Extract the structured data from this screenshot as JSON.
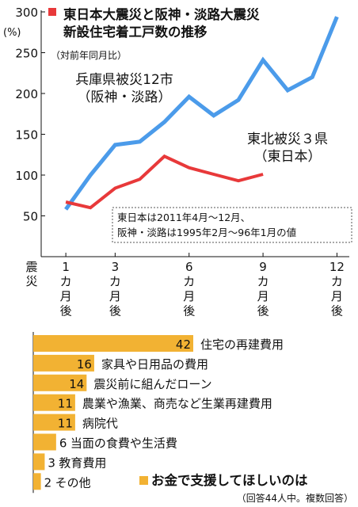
{
  "chart_data": [
    {
      "type": "line",
      "title": "東日本大震災と阪神・淡路大震災\n新設住宅着工戸数の推移",
      "subtitle": "（対前年同月比）",
      "y_unit": "(%)",
      "ylim": [
        0,
        300
      ],
      "y_ticks": [
        50,
        100,
        150,
        200,
        250,
        300
      ],
      "x_origin_label": "震災",
      "x_ticks": [
        {
          "x": 1,
          "label": "1カ月後"
        },
        {
          "x": 3,
          "label": "3カ月後"
        },
        {
          "x": 6,
          "label": "6カ月後"
        },
        {
          "x": 9,
          "label": "9カ月後"
        },
        {
          "x": 12,
          "label": "12カ月後"
        }
      ],
      "xlim": [
        0,
        12.5
      ],
      "grid": false,
      "series": [
        {
          "name": "兵庫県被災12市\n（阪神・淡路）",
          "color": "#4b9bea",
          "x": [
            1,
            2,
            3,
            4,
            5,
            6,
            7,
            8,
            9,
            10,
            11,
            12
          ],
          "values": [
            58,
            100,
            137,
            141,
            165,
            196,
            173,
            192,
            241,
            204,
            220,
            294
          ]
        },
        {
          "name": "東北被災３県\n（東日本）",
          "color": "#e8393a",
          "x": [
            1,
            2,
            3,
            4,
            5,
            6,
            7,
            8,
            9
          ],
          "values": [
            67,
            60,
            84,
            95,
            123,
            109,
            101,
            93,
            101
          ]
        }
      ],
      "note": "東日本は2011年4月～12月、\n阪神・淡路は1995年2月～96年1月の値"
    },
    {
      "type": "bar",
      "orientation": "horizontal",
      "title": "お金で支援してほしいのは",
      "subtitle": "（回答44人中。複数回答）",
      "bar_color": "#f2b233",
      "categories": [
        "住宅の再建費用",
        "家具や日用品の費用",
        "震災前に組んだローン",
        "農業や漁業、商売など生業再建費用",
        "病院代",
        "当面の食費や生活費",
        "教育費用",
        "その他"
      ],
      "values": [
        42,
        16,
        14,
        11,
        11,
        6,
        3,
        2
      ],
      "xlim": [
        0,
        42
      ]
    }
  ]
}
